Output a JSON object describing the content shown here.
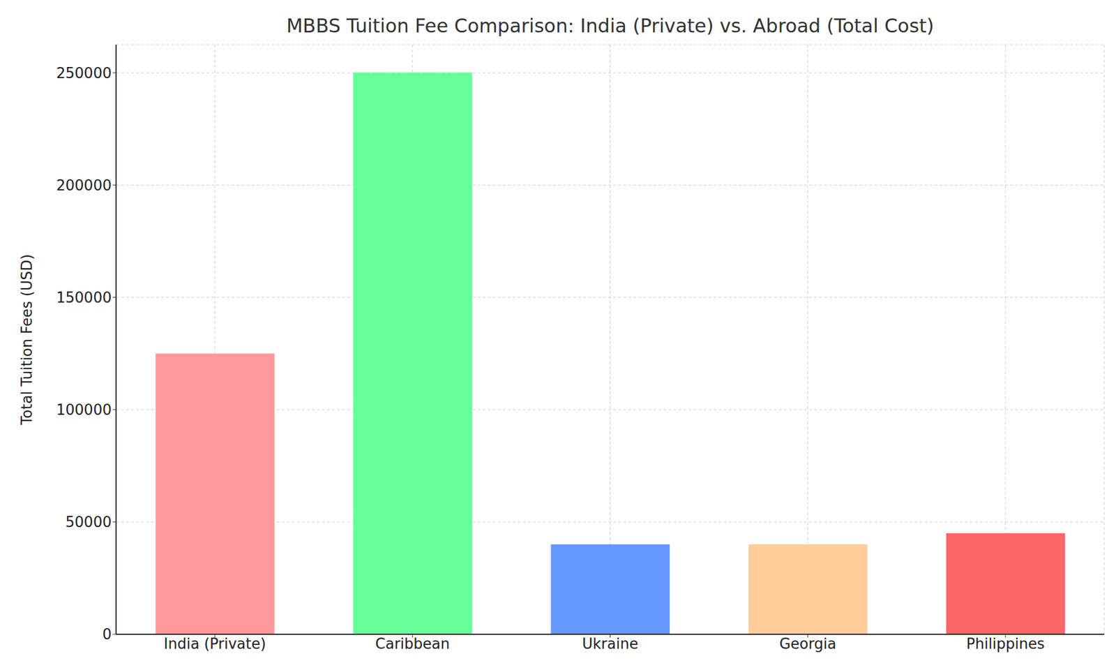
{
  "chart_data": {
    "type": "bar",
    "title": "MBBS Tuition Fee Comparison: India (Private) vs. Abroad (Total Cost)",
    "y_label": "Total Tuition Fees (USD)",
    "categories": [
      "India (Private)",
      "Caribbean",
      "Ukraine",
      "Georgia",
      "Philippines"
    ],
    "values": [
      125000,
      250000,
      40000,
      40000,
      45000
    ],
    "colors": [
      "#ff9999",
      "#66ff99",
      "#6699ff",
      "#ffcc99",
      "#ff6666"
    ],
    "ylim": [
      0,
      262500
    ],
    "yticks": [
      0,
      50000,
      100000,
      150000,
      200000,
      250000
    ],
    "grid": true
  }
}
